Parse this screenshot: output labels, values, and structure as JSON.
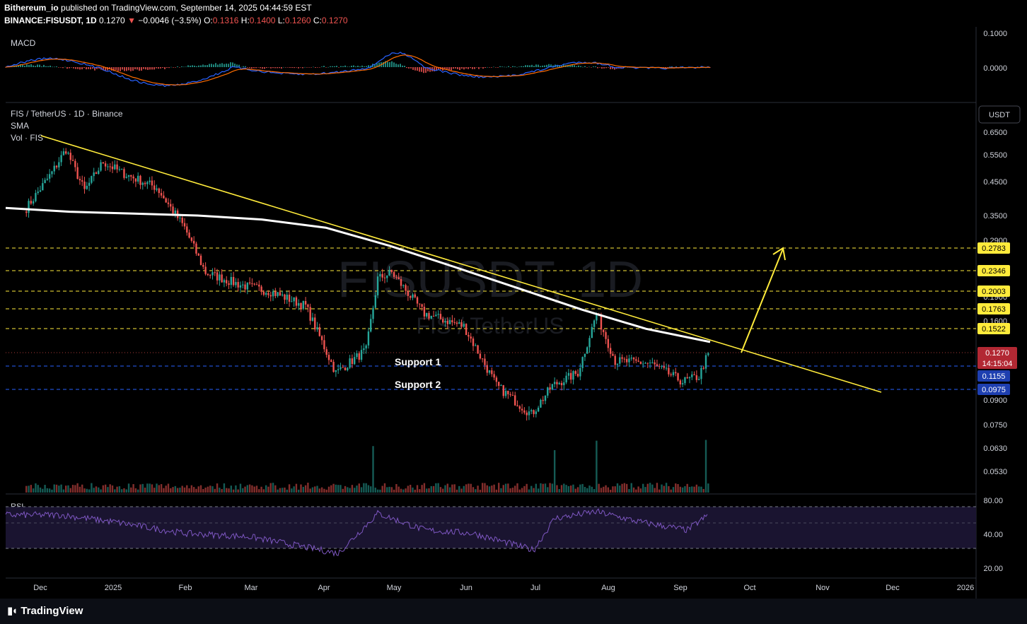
{
  "header": {
    "publisher": "Bithereum_io",
    "published_text": " published on TradingView.com, September 14, 2025 04:44:59 EST",
    "symbol": "BINANCE:FISUSDT, 1D",
    "last": "0.1270",
    "change": "−0.0046 (−3.5%)",
    "o_label": "O:",
    "o": "0.1316",
    "h_label": "H:",
    "h": "0.1400",
    "l_label": "L:",
    "l": "0.1260",
    "c_label": "C:",
    "c": "0.1270"
  },
  "panes": {
    "macd_label": "MACD",
    "main_title": "FIS / TetherUS · 1D · Binance",
    "sma_label": "SMA",
    "vol_label": "Vol · FIS",
    "rsi_label": "RSI",
    "currency_button": "USDT",
    "watermark": "FISUSDT, 1D",
    "watermark_sub": "FIS / TetherUS"
  },
  "footer": {
    "brand": "TradingView"
  },
  "colors": {
    "up": "#26a69a",
    "down": "#ef5350",
    "trendline": "#ffeb3b",
    "sma": "#ffffff",
    "macd": "#2962ff",
    "signal": "#ff6d00",
    "rsi": "#7e57c2",
    "resistance": "#ffeb3b",
    "support": "#2962ff"
  },
  "chart_data": [
    {
      "type": "candlestick",
      "title": "FIS / TetherUS · 1D · Binance",
      "price_scale": "log",
      "y_ticks": [
        "0.6500",
        "0.5500",
        "0.4500",
        "0.3500",
        "0.2900",
        "0.1900",
        "0.1600",
        "0.0900",
        "0.0750",
        "0.0630",
        "0.0530"
      ],
      "x_ticks": [
        "Dec",
        "2025",
        "Feb",
        "Mar",
        "Apr",
        "May",
        "Jun",
        "Jul",
        "Aug",
        "Sep",
        "Oct",
        "Nov",
        "Dec",
        "2026"
      ],
      "ohlc_points": [
        {
          "date": "2024-11-25",
          "close": 0.37
        },
        {
          "date": "2024-12-06",
          "close": 0.48
        },
        {
          "date": "2024-12-12",
          "close": 0.57
        },
        {
          "date": "2024-12-20",
          "close": 0.42
        },
        {
          "date": "2024-12-28",
          "close": 0.52
        },
        {
          "date": "2025-01-05",
          "close": 0.48
        },
        {
          "date": "2025-01-20",
          "close": 0.43
        },
        {
          "date": "2025-02-01",
          "close": 0.32
        },
        {
          "date": "2025-02-10",
          "close": 0.23
        },
        {
          "date": "2025-02-25",
          "close": 0.21
        },
        {
          "date": "2025-03-10",
          "close": 0.2
        },
        {
          "date": "2025-03-25",
          "close": 0.18
        },
        {
          "date": "2025-04-07",
          "close": 0.11
        },
        {
          "date": "2025-04-20",
          "close": 0.13
        },
        {
          "date": "2025-04-25",
          "close": 0.22
        },
        {
          "date": "2025-05-01",
          "close": 0.23
        },
        {
          "date": "2025-05-15",
          "close": 0.17
        },
        {
          "date": "2025-06-01",
          "close": 0.155
        },
        {
          "date": "2025-06-15",
          "close": 0.1
        },
        {
          "date": "2025-06-30",
          "close": 0.081
        },
        {
          "date": "2025-07-09",
          "close": 0.1
        },
        {
          "date": "2025-07-20",
          "close": 0.11
        },
        {
          "date": "2025-07-28",
          "close": 0.17
        },
        {
          "date": "2025-08-05",
          "close": 0.12
        },
        {
          "date": "2025-08-20",
          "close": 0.118
        },
        {
          "date": "2025-09-03",
          "close": 0.103
        },
        {
          "date": "2025-09-10",
          "close": 0.107
        },
        {
          "date": "2025-09-14",
          "close": 0.127
        }
      ],
      "series": [
        {
          "name": "SMA",
          "values": [
            0.37,
            0.36,
            0.355,
            0.35,
            0.34,
            0.32,
            0.28,
            0.24,
            0.205,
            0.175,
            0.152,
            0.138
          ]
        },
        {
          "name": "Vol · FIS",
          "peaks": [
            "2025-04-23",
            "2025-07-10",
            "2025-07-28",
            "2025-09-13"
          ]
        }
      ],
      "price_levels": [
        {
          "value": "0.2783",
          "kind": "resistance"
        },
        {
          "value": "0.2346",
          "kind": "resistance"
        },
        {
          "value": "0.2003",
          "kind": "resistance"
        },
        {
          "value": "0.1763",
          "kind": "resistance"
        },
        {
          "value": "0.1522",
          "kind": "resistance"
        },
        {
          "value": "0.1270",
          "kind": "last"
        },
        {
          "value": "0.1155",
          "kind": "support"
        },
        {
          "value": "0.0975",
          "kind": "support"
        }
      ],
      "countdown": "14:15:04",
      "annotations": [
        "Support 1",
        "Support 2"
      ],
      "trendline": [
        {
          "date": "2024-12-01",
          "price": 0.62
        },
        {
          "date": "2025-11-27",
          "price": 0.095
        }
      ],
      "arrow": [
        {
          "date": "2025-09-30",
          "price": 0.127
        },
        {
          "date": "2025-10-16",
          "price": 0.278
        }
      ]
    },
    {
      "type": "line",
      "title": "MACD",
      "y_ticks": [
        "0.1000",
        "0.0000"
      ]
    },
    {
      "type": "line",
      "title": "RSI",
      "y_ticks": [
        "80.00",
        "40.00",
        "20.00"
      ],
      "x": [
        "2024-12-10",
        "2025-01-01",
        "2025-02-01",
        "2025-03-01",
        "2025-04-08",
        "2025-04-25",
        "2025-05-15",
        "2025-06-05",
        "2025-07-01",
        "2025-07-10",
        "2025-07-28",
        "2025-08-15",
        "2025-09-05",
        "2025-09-14"
      ],
      "values": [
        70,
        62,
        48,
        44,
        24,
        72,
        52,
        48,
        28,
        66,
        74,
        62,
        52,
        70
      ]
    }
  ]
}
